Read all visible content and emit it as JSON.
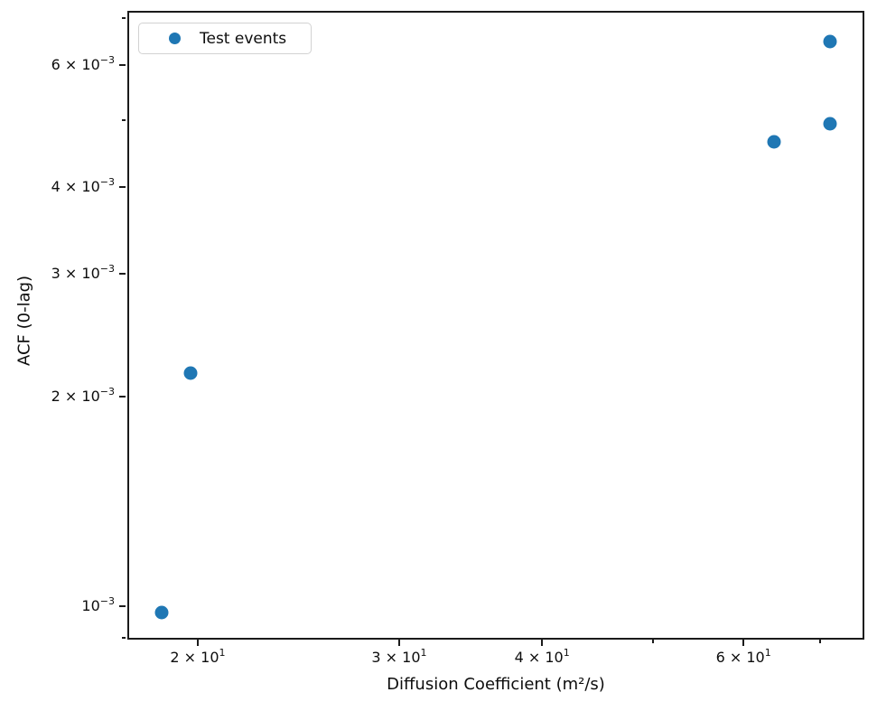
{
  "chart_data": {
    "type": "scatter",
    "title": "",
    "xlabel": "Diffusion Coefficient (m²/s)",
    "ylabel": "ACF (0-lag)",
    "x_scale": "log",
    "y_scale": "log",
    "xlim": [
      17.42,
      76.25
    ],
    "ylim": [
      0.0009,
      0.00713
    ],
    "grid": false,
    "legend": {
      "label": "Test events",
      "position": "upper left"
    },
    "series": [
      {
        "name": "Test events",
        "marker": "circle",
        "color": "#1f77b4",
        "points": [
          {
            "x": 18.6,
            "y": 0.00098
          },
          {
            "x": 19.7,
            "y": 0.00216
          },
          {
            "x": 63.8,
            "y": 0.00465
          },
          {
            "x": 71.4,
            "y": 0.00494
          },
          {
            "x": 71.4,
            "y": 0.00648
          }
        ]
      }
    ],
    "x_ticks": [
      {
        "value": 20,
        "base": "2 × 10",
        "sup": "1"
      },
      {
        "value": 30,
        "base": "3 × 10",
        "sup": "1"
      },
      {
        "value": 40,
        "base": "4 × 10",
        "sup": "1"
      },
      {
        "value": 60,
        "base": "6 × 10",
        "sup": "1"
      }
    ],
    "x_minor_ticks": [
      50,
      70
    ],
    "y_ticks": [
      {
        "value": 0.001,
        "base": "10",
        "sup": "−3"
      },
      {
        "value": 0.002,
        "base": "2 × 10",
        "sup": "−3"
      },
      {
        "value": 0.003,
        "base": "3 × 10",
        "sup": "−3"
      },
      {
        "value": 0.004,
        "base": "4 × 10",
        "sup": "−3"
      },
      {
        "value": 0.006,
        "base": "6 × 10",
        "sup": "−3"
      }
    ],
    "y_minor_ticks": [
      0.0009,
      0.005,
      0.007
    ],
    "colors": {
      "marker": "#1f77b4",
      "axis": "#1b1b1b",
      "legend_border": "#d2d2d2",
      "background": "#ffffff"
    }
  }
}
